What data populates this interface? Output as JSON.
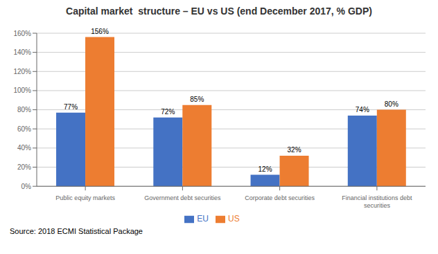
{
  "chart_data": {
    "type": "bar",
    "title": "Capital market  structure – EU vs US (end December 2017, % GDP)",
    "categories": [
      "Public equity markets",
      "Government debt securities",
      "Corporate debt securities",
      "Financial institutions debt\nsecurities"
    ],
    "series": [
      {
        "name": "EU",
        "color": "#4472C4",
        "values": [
          77,
          72,
          12,
          74
        ],
        "value_labels": [
          "77%",
          "72%",
          "12%",
          "74%"
        ]
      },
      {
        "name": "US",
        "color": "#ED7D31",
        "values": [
          156,
          85,
          32,
          80
        ],
        "value_labels": [
          "156%",
          "85%",
          "32%",
          "80%"
        ]
      }
    ],
    "ylim": [
      0,
      160
    ],
    "yticks": [
      {
        "value": 0,
        "label": "0%"
      },
      {
        "value": 20,
        "label": "20%"
      },
      {
        "value": 40,
        "label": "40%"
      },
      {
        "value": 60,
        "label": "60%"
      },
      {
        "value": 80,
        "label": "80%"
      },
      {
        "value": 100,
        "label": "100%"
      },
      {
        "value": 120,
        "label": "120%"
      },
      {
        "value": 140,
        "label": "140%"
      },
      {
        "value": 160,
        "label": "160%"
      }
    ],
    "grid": true,
    "legend": "bottom",
    "data_labels": true,
    "annotations": [
      "Source: 2018 ECMI Statistical Package"
    ]
  }
}
